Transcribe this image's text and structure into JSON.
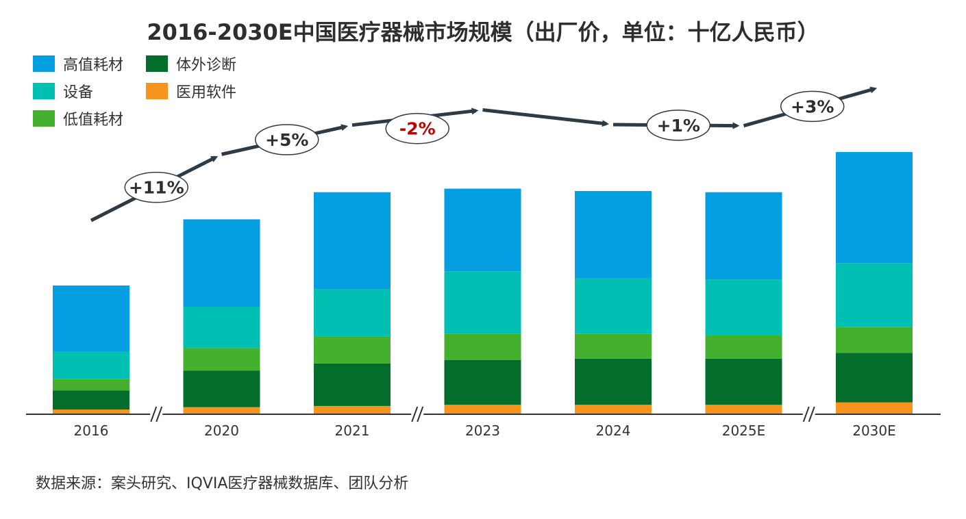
{
  "chart_data": {
    "type": "bar",
    "stacked": true,
    "title": "2016-2030E中国医疗器械市场规模（出厂价，单位：十亿人民币）",
    "categories": [
      "2016",
      "2020",
      "2021",
      "2023",
      "2024",
      "2025E",
      "2030E"
    ],
    "axis_breaks_after": [
      "2016",
      "2021",
      "2025E"
    ],
    "series": [
      {
        "name": "医用软件",
        "color": "#F7941D",
        "values": [
          2,
          3,
          3.5,
          4,
          4,
          4,
          5
        ]
      },
      {
        "name": "体外诊断",
        "color": "#036E2C",
        "values": [
          8,
          15.5,
          18,
          19,
          19.5,
          19.5,
          21
        ]
      },
      {
        "name": "低值耗材",
        "color": "#45B02D",
        "values": [
          5,
          9.5,
          11.5,
          11,
          10.5,
          10,
          11
        ]
      },
      {
        "name": "设备",
        "color": "#00BFB3",
        "values": [
          11.5,
          17.5,
          20,
          26.5,
          23.5,
          23.5,
          27
        ]
      },
      {
        "name": "高值耗材",
        "color": "#039FE1",
        "values": [
          28,
          37,
          41,
          35,
          37,
          37,
          47
        ]
      }
    ],
    "growth_labels": [
      {
        "text": "+11%",
        "negative": false
      },
      {
        "text": "+5%",
        "negative": false
      },
      {
        "text": "-2%",
        "negative": true
      },
      {
        "text": "+1%",
        "negative": false
      },
      {
        "text": "+3%",
        "negative": false
      }
    ],
    "legend_position": "top-left",
    "grid": false
  },
  "legend": {
    "items": [
      {
        "label": "高值耗材",
        "color": "#039FE1"
      },
      {
        "label": "体外诊断",
        "color": "#036E2C"
      },
      {
        "label": "设备",
        "color": "#00BFB3"
      },
      {
        "label": "医用软件",
        "color": "#F7941D"
      },
      {
        "label": "低值耗材",
        "color": "#45B02D"
      }
    ]
  },
  "source": "数据来源：案头研究、IQVIA医疗器械数据库、团队分析",
  "colors": {
    "trend_line": "#2E3A44",
    "negative_text": "#C00000",
    "axis": "#333333"
  }
}
